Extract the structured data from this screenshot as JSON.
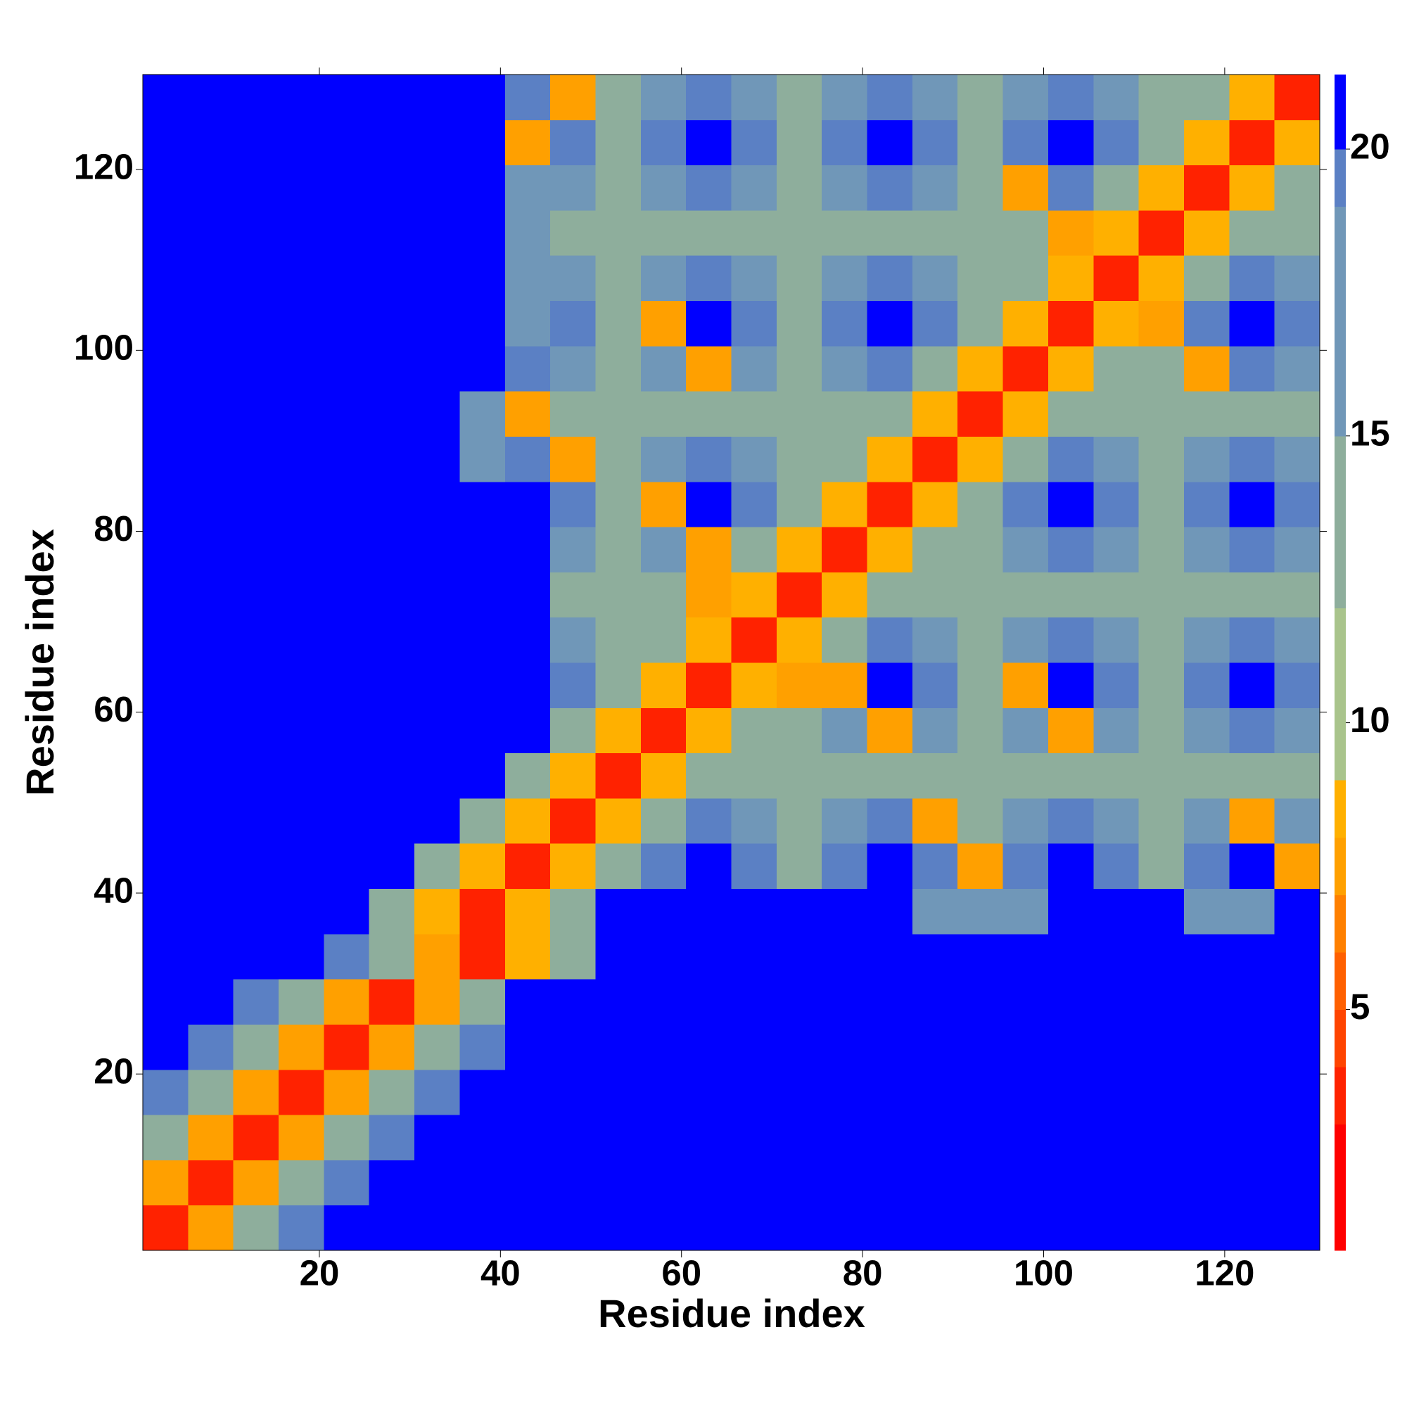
{
  "chart_data": {
    "type": "heatmap",
    "xlabel": "Residue index",
    "ylabel": "Residue index",
    "x": [
      3,
      8,
      13,
      18,
      23,
      28,
      33,
      38,
      43,
      48,
      53,
      58,
      63,
      68,
      73,
      78,
      83,
      88,
      93,
      98,
      103,
      108,
      113,
      118,
      123,
      128
    ],
    "y": [
      3,
      8,
      13,
      18,
      23,
      28,
      33,
      38,
      43,
      48,
      53,
      58,
      63,
      68,
      73,
      78,
      83,
      88,
      93,
      98,
      103,
      108,
      113,
      118,
      123,
      128
    ],
    "z": [
      [
        3,
        7,
        13,
        19,
        22,
        22,
        22,
        22,
        22,
        22,
        22,
        22,
        22,
        22,
        22,
        22,
        22,
        22,
        22,
        22,
        22,
        22,
        22,
        22,
        22,
        22
      ],
      [
        7,
        3,
        7,
        13,
        19,
        22,
        22,
        22,
        22,
        22,
        22,
        22,
        22,
        22,
        22,
        22,
        22,
        22,
        22,
        22,
        22,
        22,
        22,
        22,
        22,
        22
      ],
      [
        13,
        7,
        3,
        7,
        13,
        19,
        22,
        22,
        22,
        22,
        22,
        22,
        22,
        22,
        22,
        22,
        22,
        22,
        22,
        22,
        22,
        22,
        22,
        22,
        22,
        22
      ],
      [
        19,
        13,
        7,
        3,
        7,
        13,
        19,
        22,
        22,
        22,
        22,
        22,
        22,
        22,
        22,
        22,
        22,
        22,
        22,
        22,
        22,
        22,
        22,
        22,
        22,
        22
      ],
      [
        22,
        19,
        13,
        7,
        3,
        7,
        13,
        19,
        22,
        22,
        22,
        22,
        22,
        22,
        22,
        22,
        22,
        22,
        22,
        22,
        22,
        22,
        22,
        22,
        22,
        22
      ],
      [
        22,
        22,
        19,
        13,
        7,
        3,
        7,
        13,
        22,
        22,
        22,
        22,
        22,
        22,
        22,
        22,
        22,
        22,
        22,
        22,
        22,
        22,
        22,
        22,
        22,
        22
      ],
      [
        22,
        22,
        22,
        22,
        19,
        13,
        7,
        3,
        8,
        13,
        22,
        22,
        22,
        22,
        22,
        22,
        22,
        22,
        22,
        22,
        22,
        22,
        22,
        22,
        22,
        22
      ],
      [
        22,
        22,
        22,
        22,
        22,
        13,
        8,
        3,
        8,
        13,
        22,
        22,
        22,
        22,
        22,
        22,
        22,
        18,
        18,
        18,
        20,
        22,
        20,
        18,
        18,
        20
      ],
      [
        22,
        22,
        22,
        22,
        22,
        22,
        13,
        8,
        3,
        8,
        13,
        19,
        22,
        19,
        12,
        19,
        22,
        19,
        7,
        19,
        22,
        19,
        12,
        19,
        22,
        7
      ],
      [
        22,
        22,
        22,
        22,
        22,
        22,
        22,
        13,
        8,
        3,
        8,
        13,
        19,
        15,
        12,
        15,
        19,
        7,
        12,
        15,
        19,
        15,
        12,
        15,
        7,
        15
      ],
      [
        22,
        22,
        22,
        22,
        22,
        22,
        22,
        22,
        13,
        8,
        3,
        8,
        13,
        12,
        12,
        12,
        12,
        12,
        12,
        12,
        12,
        12,
        12,
        12,
        12,
        12
      ],
      [
        22,
        22,
        22,
        22,
        22,
        22,
        22,
        22,
        20,
        13,
        8,
        3,
        8,
        13,
        12,
        15,
        7,
        15,
        12,
        15,
        7,
        15,
        12,
        15,
        19,
        15
      ],
      [
        22,
        22,
        22,
        22,
        22,
        22,
        22,
        22,
        20,
        19,
        13,
        8,
        3,
        8,
        7,
        7,
        22,
        19,
        12,
        7,
        22,
        19,
        12,
        19,
        22,
        19
      ],
      [
        22,
        22,
        22,
        22,
        22,
        22,
        22,
        22,
        20,
        15,
        12,
        13,
        8,
        3,
        8,
        13,
        19,
        15,
        12,
        15,
        19,
        15,
        12,
        15,
        19,
        15
      ],
      [
        22,
        22,
        22,
        22,
        22,
        22,
        22,
        22,
        20,
        12,
        12,
        12,
        7,
        8,
        3,
        8,
        13,
        12,
        12,
        12,
        12,
        12,
        12,
        12,
        12,
        12
      ],
      [
        22,
        22,
        22,
        22,
        22,
        22,
        22,
        22,
        20,
        15,
        12,
        15,
        7,
        13,
        8,
        3,
        8,
        13,
        12,
        15,
        19,
        15,
        12,
        15,
        19,
        15
      ],
      [
        22,
        22,
        22,
        22,
        22,
        22,
        22,
        22,
        22,
        19,
        12,
        7,
        22,
        19,
        13,
        8,
        3,
        8,
        13,
        19,
        22,
        19,
        12,
        19,
        22,
        19
      ],
      [
        22,
        22,
        22,
        22,
        22,
        22,
        22,
        17,
        19,
        7,
        12,
        15,
        19,
        15,
        12,
        13,
        8,
        3,
        8,
        13,
        19,
        15,
        12,
        15,
        19,
        15
      ],
      [
        22,
        22,
        22,
        22,
        22,
        22,
        22,
        17,
        7,
        12,
        12,
        12,
        12,
        12,
        12,
        12,
        13,
        8,
        3,
        8,
        13,
        12,
        12,
        12,
        12,
        12
      ],
      [
        22,
        22,
        22,
        22,
        22,
        22,
        22,
        22,
        19,
        15,
        12,
        15,
        7,
        15,
        12,
        15,
        19,
        13,
        8,
        3,
        8,
        13,
        12,
        7,
        19,
        15
      ],
      [
        22,
        22,
        22,
        22,
        22,
        22,
        22,
        22,
        18,
        19,
        12,
        7,
        22,
        19,
        12,
        19,
        22,
        19,
        13,
        8,
        3,
        8,
        7,
        19,
        22,
        19
      ],
      [
        22,
        22,
        22,
        22,
        22,
        22,
        22,
        22,
        18,
        15,
        12,
        15,
        19,
        15,
        12,
        15,
        19,
        15,
        12,
        13,
        8,
        3,
        8,
        13,
        19,
        15
      ],
      [
        22,
        22,
        22,
        22,
        22,
        22,
        22,
        22,
        18,
        12,
        12,
        12,
        12,
        12,
        12,
        12,
        12,
        12,
        12,
        12,
        7,
        8,
        3,
        8,
        13,
        12
      ],
      [
        22,
        22,
        22,
        22,
        22,
        22,
        22,
        22,
        18,
        15,
        12,
        15,
        19,
        15,
        12,
        15,
        19,
        15,
        12,
        7,
        19,
        13,
        8,
        3,
        8,
        13
      ],
      [
        22,
        22,
        22,
        22,
        22,
        22,
        22,
        22,
        7,
        19,
        12,
        19,
        22,
        19,
        12,
        19,
        22,
        19,
        12,
        19,
        22,
        19,
        13,
        8,
        3,
        8
      ],
      [
        22,
        22,
        22,
        22,
        22,
        22,
        22,
        22,
        19,
        7,
        12,
        15,
        19,
        15,
        12,
        15,
        19,
        15,
        12,
        15,
        19,
        15,
        12,
        13,
        8,
        3
      ]
    ],
    "xlim": [
      0.5,
      130.5
    ],
    "ylim": [
      0.5,
      130.5
    ],
    "xticks": [
      20,
      40,
      60,
      80,
      100,
      120
    ],
    "yticks": [
      20,
      40,
      60,
      80,
      100,
      120
    ],
    "clim": [
      0.8,
      21.3
    ],
    "cticks": [
      5,
      10,
      15,
      20
    ],
    "colorscale": [
      [
        0.8,
        "#ff0000"
      ],
      [
        3,
        "#ff2200"
      ],
      [
        4,
        "#ff4400"
      ],
      [
        5,
        "#ff6000"
      ],
      [
        6,
        "#ff8000"
      ],
      [
        7,
        "#ffa000"
      ],
      [
        8,
        "#ffb000"
      ],
      [
        9,
        "#a9c48c"
      ],
      [
        12,
        "#8eae9c"
      ],
      [
        15,
        "#7097b8"
      ],
      [
        19,
        "#5b80c4"
      ],
      [
        20,
        "#0000ff"
      ]
    ]
  }
}
